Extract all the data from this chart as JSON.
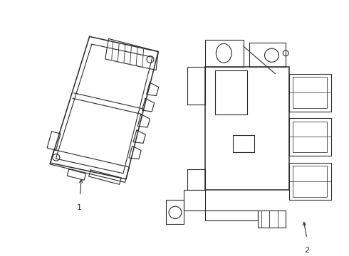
{
  "bg_color": "#ffffff",
  "line_color": "#2a2a2a",
  "lw": 0.8,
  "lw_thick": 1.1,
  "label1": "1",
  "label2": "2"
}
